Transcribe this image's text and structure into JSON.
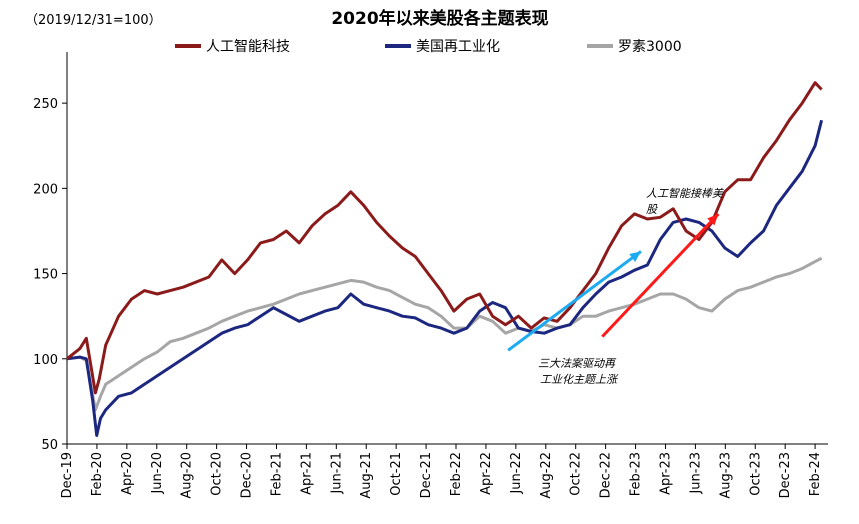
{
  "chart_data": {
    "type": "line",
    "title": "2020年以来美股各主题表现",
    "subtitle": "（2019/12/31=100）",
    "ylim": [
      50,
      280
    ],
    "yticks": [
      50,
      100,
      150,
      200,
      250
    ],
    "xticks": [
      "Dec-19",
      "Feb-20",
      "Apr-20",
      "Jun-20",
      "Aug-20",
      "Oct-20",
      "Dec-20",
      "Feb-21",
      "Apr-21",
      "Jun-21",
      "Aug-21",
      "Oct-21",
      "Dec-21",
      "Feb-22",
      "Apr-22",
      "Jun-22",
      "Aug-22",
      "Oct-22",
      "Dec-22",
      "Feb-23",
      "Apr-23",
      "Jun-23",
      "Aug-23",
      "Oct-23",
      "Dec-23",
      "Feb-24"
    ],
    "x_unit": "month index (0 = Dec-19)",
    "grid": false,
    "legend_position": "top",
    "series": [
      {
        "name": "人工智能科技",
        "color": "#8b1a1a",
        "points": [
          [
            0,
            100
          ],
          [
            1,
            106
          ],
          [
            1.5,
            112
          ],
          [
            2.2,
            80
          ],
          [
            2.5,
            88
          ],
          [
            3,
            108
          ],
          [
            4,
            125
          ],
          [
            5,
            135
          ],
          [
            6,
            140
          ],
          [
            7,
            138
          ],
          [
            8,
            140
          ],
          [
            9,
            142
          ],
          [
            11,
            148
          ],
          [
            12,
            158
          ],
          [
            13,
            150
          ],
          [
            14,
            158
          ],
          [
            15,
            168
          ],
          [
            16,
            170
          ],
          [
            17,
            175
          ],
          [
            18,
            168
          ],
          [
            19,
            178
          ],
          [
            20,
            185
          ],
          [
            21,
            190
          ],
          [
            22,
            198
          ],
          [
            23,
            190
          ],
          [
            24,
            180
          ],
          [
            25,
            172
          ],
          [
            26,
            165
          ],
          [
            27,
            160
          ],
          [
            28,
            150
          ],
          [
            29,
            140
          ],
          [
            30,
            128
          ],
          [
            31,
            135
          ],
          [
            32,
            138
          ],
          [
            33,
            125
          ],
          [
            34,
            120
          ],
          [
            35,
            125
          ],
          [
            36,
            118
          ],
          [
            37,
            124
          ],
          [
            38,
            122
          ],
          [
            39,
            130
          ],
          [
            40,
            140
          ],
          [
            41,
            150
          ],
          [
            42,
            165
          ],
          [
            43,
            178
          ],
          [
            44,
            185
          ],
          [
            45,
            182
          ],
          [
            46,
            183
          ],
          [
            47,
            188
          ],
          [
            48,
            175
          ],
          [
            49,
            170
          ],
          [
            50,
            180
          ],
          [
            51,
            198
          ],
          [
            52,
            205
          ],
          [
            53,
            205
          ],
          [
            54,
            218
          ],
          [
            55,
            228
          ],
          [
            56,
            240
          ],
          [
            57,
            250
          ],
          [
            58,
            262
          ],
          [
            58.5,
            258
          ]
        ]
      },
      {
        "name": "美国再工业化",
        "color": "#1c2780",
        "points": [
          [
            0,
            100
          ],
          [
            1,
            101
          ],
          [
            1.5,
            100
          ],
          [
            2,
            75
          ],
          [
            2.3,
            55
          ],
          [
            2.6,
            65
          ],
          [
            3,
            70
          ],
          [
            4,
            78
          ],
          [
            5,
            80
          ],
          [
            6,
            85
          ],
          [
            7,
            90
          ],
          [
            8,
            95
          ],
          [
            9,
            100
          ],
          [
            10,
            105
          ],
          [
            11,
            110
          ],
          [
            12,
            115
          ],
          [
            13,
            118
          ],
          [
            14,
            120
          ],
          [
            15,
            125
          ],
          [
            16,
            130
          ],
          [
            17,
            126
          ],
          [
            18,
            122
          ],
          [
            19,
            125
          ],
          [
            20,
            128
          ],
          [
            21,
            130
          ],
          [
            22,
            138
          ],
          [
            23,
            132
          ],
          [
            24,
            130
          ],
          [
            25,
            128
          ],
          [
            26,
            125
          ],
          [
            27,
            124
          ],
          [
            28,
            120
          ],
          [
            29,
            118
          ],
          [
            30,
            115
          ],
          [
            31,
            118
          ],
          [
            32,
            128
          ],
          [
            33,
            133
          ],
          [
            34,
            130
          ],
          [
            35,
            118
          ],
          [
            36,
            116
          ],
          [
            37,
            115
          ],
          [
            38,
            118
          ],
          [
            39,
            120
          ],
          [
            40,
            130
          ],
          [
            41,
            138
          ],
          [
            42,
            145
          ],
          [
            43,
            148
          ],
          [
            44,
            152
          ],
          [
            45,
            155
          ],
          [
            46,
            170
          ],
          [
            47,
            180
          ],
          [
            48,
            182
          ],
          [
            49,
            180
          ],
          [
            50,
            175
          ],
          [
            51,
            165
          ],
          [
            52,
            160
          ],
          [
            53,
            168
          ],
          [
            54,
            175
          ],
          [
            55,
            190
          ],
          [
            56,
            200
          ],
          [
            57,
            210
          ],
          [
            58,
            225
          ],
          [
            58.5,
            240
          ]
        ]
      },
      {
        "name": "罗素3000",
        "color": "#a6a6a6",
        "points": [
          [
            0,
            100
          ],
          [
            1,
            101
          ],
          [
            1.5,
            99
          ],
          [
            2.2,
            70
          ],
          [
            2.6,
            78
          ],
          [
            3,
            85
          ],
          [
            4,
            90
          ],
          [
            5,
            95
          ],
          [
            6,
            100
          ],
          [
            7,
            104
          ],
          [
            8,
            110
          ],
          [
            9,
            112
          ],
          [
            10,
            115
          ],
          [
            11,
            118
          ],
          [
            12,
            122
          ],
          [
            13,
            125
          ],
          [
            14,
            128
          ],
          [
            15,
            130
          ],
          [
            16,
            132
          ],
          [
            17,
            135
          ],
          [
            18,
            138
          ],
          [
            19,
            140
          ],
          [
            20,
            142
          ],
          [
            21,
            144
          ],
          [
            22,
            146
          ],
          [
            23,
            145
          ],
          [
            24,
            142
          ],
          [
            25,
            140
          ],
          [
            26,
            136
          ],
          [
            27,
            132
          ],
          [
            28,
            130
          ],
          [
            29,
            125
          ],
          [
            30,
            118
          ],
          [
            31,
            118
          ],
          [
            32,
            125
          ],
          [
            33,
            122
          ],
          [
            34,
            115
          ],
          [
            35,
            118
          ],
          [
            36,
            116
          ],
          [
            37,
            120
          ],
          [
            38,
            118
          ],
          [
            39,
            120
          ],
          [
            40,
            125
          ],
          [
            41,
            125
          ],
          [
            42,
            128
          ],
          [
            43,
            130
          ],
          [
            44,
            132
          ],
          [
            45,
            135
          ],
          [
            46,
            138
          ],
          [
            47,
            138
          ],
          [
            48,
            135
          ],
          [
            49,
            130
          ],
          [
            50,
            128
          ],
          [
            51,
            135
          ],
          [
            52,
            140
          ],
          [
            53,
            142
          ],
          [
            54,
            145
          ],
          [
            55,
            148
          ],
          [
            56,
            150
          ],
          [
            57,
            153
          ],
          [
            58,
            157
          ],
          [
            58.5,
            159
          ]
        ]
      }
    ],
    "annotations": [
      {
        "lines": [
          "人工智能接棒美",
          "股"
        ],
        "arrow": {
          "color": "#ff1a1a",
          "from": [
            41.5,
            113
          ],
          "to": [
            50.5,
            185
          ]
        }
      },
      {
        "lines": [
          "三大法案驱动再",
          "工业化主题上涨"
        ],
        "arrow": {
          "color": "#1eaaf1",
          "from": [
            34.2,
            105
          ],
          "to": [
            44.5,
            163
          ]
        }
      }
    ]
  }
}
